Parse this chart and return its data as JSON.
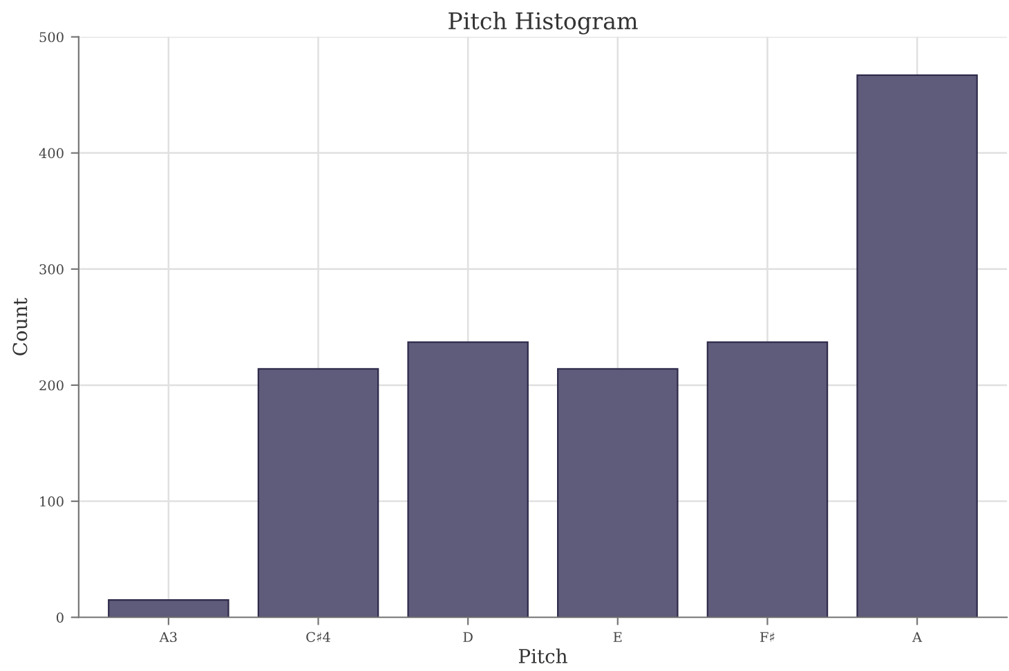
{
  "chart_data": {
    "type": "bar",
    "title": "Pitch Histogram",
    "xlabel": "Pitch",
    "ylabel": "Count",
    "categories": [
      "A3",
      "C♯4",
      "D",
      "E",
      "F♯",
      "A"
    ],
    "values": [
      15,
      214,
      237,
      214,
      237,
      467
    ],
    "color": "#5f5b7a",
    "ylim": [
      0,
      500
    ],
    "yticks": [
      0,
      100,
      200,
      300,
      400,
      500
    ],
    "grid": true
  }
}
